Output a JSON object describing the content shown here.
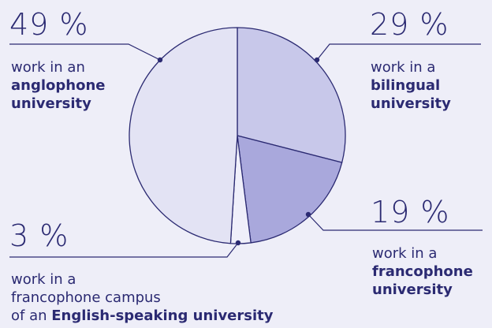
{
  "chart_data": {
    "type": "pie",
    "colors": {
      "outline": "#2b2a72",
      "anglophone": "#e3e3f4",
      "bilingual": "#c8c8ea",
      "francophone": "#a9a8dc",
      "campus": "#efeffa"
    },
    "slices": [
      {
        "key": "bilingual",
        "value": 29,
        "pct_text": "29 %",
        "line1": "work in a",
        "bold": "bilingual",
        "bold2": "university"
      },
      {
        "key": "francophone",
        "value": 19,
        "pct_text": "19 %",
        "line1": "work in a",
        "bold": "francophone",
        "bold2": "university"
      },
      {
        "key": "campus",
        "value": 3,
        "pct_text": "3 %",
        "line1": "work in a",
        "line2": "francophone campus",
        "line3_prefix": "of an",
        "bold": "English-speaking university"
      },
      {
        "key": "anglophone",
        "value": 49,
        "pct_text": "49 %",
        "line1": "work in an",
        "bold": "anglophone",
        "bold2": "university"
      }
    ]
  }
}
